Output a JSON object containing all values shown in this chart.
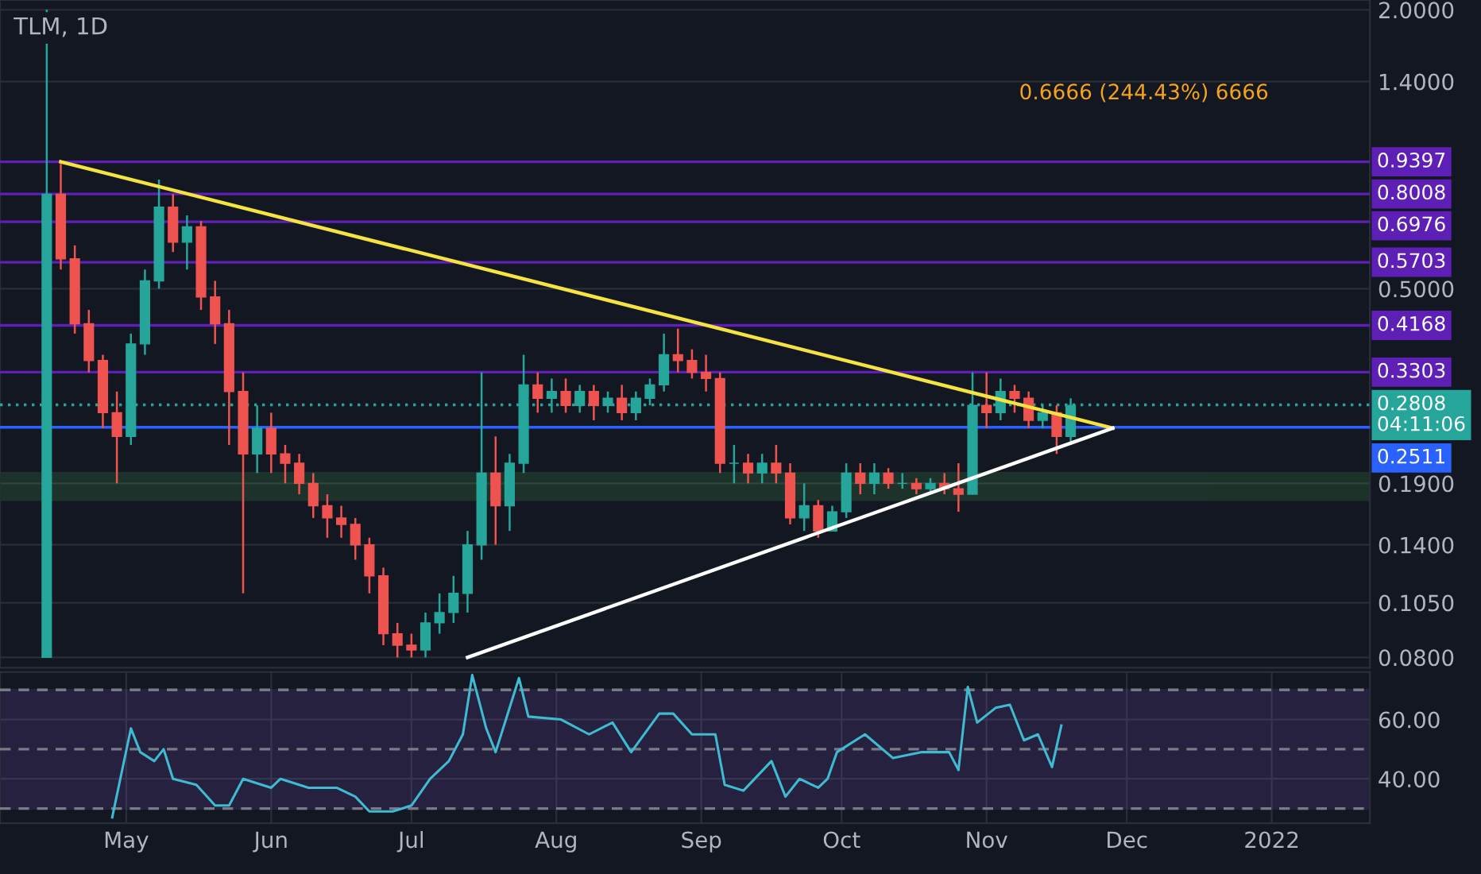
{
  "chart_data": [
    {
      "type": "candlestick",
      "title": "TLM, 1D",
      "x": [
        "2021-04-14",
        "2021-04-17",
        "2021-04-20",
        "2021-04-23",
        "2021-04-26",
        "2021-04-29",
        "2021-05-02",
        "2021-05-05",
        "2021-05-08",
        "2021-05-11",
        "2021-05-14",
        "2021-05-17",
        "2021-05-20",
        "2021-05-23",
        "2021-05-26",
        "2021-05-29",
        "2021-06-01",
        "2021-06-04",
        "2021-06-07",
        "2021-06-10",
        "2021-06-13",
        "2021-06-16",
        "2021-06-19",
        "2021-06-22",
        "2021-06-25",
        "2021-06-28",
        "2021-07-01",
        "2021-07-04",
        "2021-07-07",
        "2021-07-10",
        "2021-07-13",
        "2021-07-16",
        "2021-07-19",
        "2021-07-22",
        "2021-07-25",
        "2021-07-28",
        "2021-07-31",
        "2021-08-03",
        "2021-08-06",
        "2021-08-09",
        "2021-08-12",
        "2021-08-15",
        "2021-08-18",
        "2021-08-21",
        "2021-08-24",
        "2021-08-27",
        "2021-08-30",
        "2021-09-02",
        "2021-09-05",
        "2021-09-08",
        "2021-09-11",
        "2021-09-14",
        "2021-09-17",
        "2021-09-20",
        "2021-09-23",
        "2021-09-26",
        "2021-09-29",
        "2021-10-02",
        "2021-10-05",
        "2021-10-08",
        "2021-10-11",
        "2021-10-14",
        "2021-10-17",
        "2021-10-20",
        "2021-10-23",
        "2021-10-26",
        "2021-10-29",
        "2021-11-01",
        "2021-11-04",
        "2021-11-07",
        "2021-11-10",
        "2021-11-13",
        "2021-11-16",
        "2021-11-19"
      ],
      "ohlc": [
        [
          0.08,
          2.0,
          0.08,
          0.8
        ],
        [
          0.8,
          0.93,
          0.55,
          0.58
        ],
        [
          0.58,
          0.62,
          0.4,
          0.42
        ],
        [
          0.42,
          0.45,
          0.33,
          0.35
        ],
        [
          0.35,
          0.36,
          0.25,
          0.27
        ],
        [
          0.27,
          0.3,
          0.19,
          0.24
        ],
        [
          0.24,
          0.4,
          0.23,
          0.38
        ],
        [
          0.38,
          0.55,
          0.36,
          0.52
        ],
        [
          0.52,
          0.86,
          0.5,
          0.75
        ],
        [
          0.75,
          0.8,
          0.6,
          0.63
        ],
        [
          0.63,
          0.72,
          0.55,
          0.68
        ],
        [
          0.68,
          0.7,
          0.45,
          0.48
        ],
        [
          0.48,
          0.52,
          0.38,
          0.42
        ],
        [
          0.42,
          0.45,
          0.23,
          0.3
        ],
        [
          0.3,
          0.33,
          0.11,
          0.22
        ],
        [
          0.22,
          0.28,
          0.2,
          0.25
        ],
        [
          0.25,
          0.27,
          0.2,
          0.22
        ],
        [
          0.22,
          0.23,
          0.19,
          0.21
        ],
        [
          0.21,
          0.22,
          0.18,
          0.19
        ],
        [
          0.19,
          0.2,
          0.16,
          0.17
        ],
        [
          0.17,
          0.18,
          0.145,
          0.16
        ],
        [
          0.16,
          0.17,
          0.145,
          0.155
        ],
        [
          0.155,
          0.16,
          0.13,
          0.14
        ],
        [
          0.14,
          0.145,
          0.11,
          0.12
        ],
        [
          0.12,
          0.125,
          0.085,
          0.09
        ],
        [
          0.09,
          0.095,
          0.08,
          0.085
        ],
        [
          0.085,
          0.09,
          0.08,
          0.083
        ],
        [
          0.083,
          0.1,
          0.08,
          0.095
        ],
        [
          0.095,
          0.11,
          0.09,
          0.1
        ],
        [
          0.1,
          0.12,
          0.095,
          0.11
        ],
        [
          0.11,
          0.15,
          0.1,
          0.14
        ],
        [
          0.14,
          0.33,
          0.13,
          0.2
        ],
        [
          0.2,
          0.24,
          0.14,
          0.17
        ],
        [
          0.17,
          0.22,
          0.15,
          0.21
        ],
        [
          0.21,
          0.36,
          0.2,
          0.31
        ],
        [
          0.31,
          0.33,
          0.27,
          0.29
        ],
        [
          0.29,
          0.32,
          0.27,
          0.3
        ],
        [
          0.3,
          0.32,
          0.27,
          0.28
        ],
        [
          0.28,
          0.31,
          0.27,
          0.3
        ],
        [
          0.3,
          0.31,
          0.26,
          0.28
        ],
        [
          0.28,
          0.3,
          0.27,
          0.29
        ],
        [
          0.29,
          0.31,
          0.26,
          0.27
        ],
        [
          0.27,
          0.3,
          0.26,
          0.29
        ],
        [
          0.29,
          0.32,
          0.28,
          0.31
        ],
        [
          0.31,
          0.4,
          0.3,
          0.36
        ],
        [
          0.36,
          0.41,
          0.33,
          0.35
        ],
        [
          0.35,
          0.37,
          0.32,
          0.33
        ],
        [
          0.33,
          0.36,
          0.3,
          0.32
        ],
        [
          0.32,
          0.33,
          0.2,
          0.21
        ],
        [
          0.21,
          0.23,
          0.19,
          0.21
        ],
        [
          0.21,
          0.22,
          0.19,
          0.2
        ],
        [
          0.2,
          0.22,
          0.19,
          0.21
        ],
        [
          0.21,
          0.23,
          0.19,
          0.2
        ],
        [
          0.2,
          0.21,
          0.155,
          0.16
        ],
        [
          0.16,
          0.19,
          0.15,
          0.17
        ],
        [
          0.17,
          0.175,
          0.145,
          0.15
        ],
        [
          0.15,
          0.17,
          0.15,
          0.165
        ],
        [
          0.165,
          0.21,
          0.16,
          0.2
        ],
        [
          0.2,
          0.21,
          0.18,
          0.19
        ],
        [
          0.19,
          0.21,
          0.18,
          0.2
        ],
        [
          0.2,
          0.205,
          0.185,
          0.19
        ],
        [
          0.19,
          0.2,
          0.185,
          0.19
        ],
        [
          0.19,
          0.195,
          0.18,
          0.185
        ],
        [
          0.185,
          0.195,
          0.18,
          0.19
        ],
        [
          0.19,
          0.2,
          0.18,
          0.185
        ],
        [
          0.185,
          0.21,
          0.165,
          0.18
        ],
        [
          0.18,
          0.33,
          0.18,
          0.28
        ],
        [
          0.28,
          0.33,
          0.25,
          0.27
        ],
        [
          0.27,
          0.32,
          0.26,
          0.3
        ],
        [
          0.3,
          0.31,
          0.27,
          0.29
        ],
        [
          0.29,
          0.3,
          0.25,
          0.26
        ],
        [
          0.26,
          0.28,
          0.25,
          0.27
        ],
        [
          0.27,
          0.28,
          0.22,
          0.24
        ],
        [
          0.24,
          0.29,
          0.23,
          0.28
        ]
      ],
      "series": [
        {
          "type": "line",
          "color": "#f5e342",
          "x": [
            "2021-04-17",
            "2021-11-28"
          ],
          "values": [
            0.94,
            0.25
          ]
        },
        {
          "type": "line",
          "color": "#ffffff",
          "x": [
            "2021-07-13",
            "2021-11-28"
          ],
          "values": [
            0.08,
            0.25
          ]
        }
      ],
      "ref_lines": [
        {
          "axis": "y",
          "value": 0.9397,
          "label": "0.9397",
          "color": "#5d1fb5"
        },
        {
          "axis": "y",
          "value": 0.8008,
          "label": "0.8008",
          "color": "#5d1fb5"
        },
        {
          "axis": "y",
          "value": 0.6976,
          "label": "0.6976",
          "color": "#5d1fb5"
        },
        {
          "axis": "y",
          "value": 0.5703,
          "label": "0.5703",
          "color": "#5d1fb5"
        },
        {
          "axis": "y",
          "value": 0.4168,
          "label": "0.4168",
          "color": "#5d1fb5"
        },
        {
          "axis": "y",
          "value": 0.3303,
          "label": "0.3303",
          "color": "#5d1fb5"
        },
        {
          "axis": "y",
          "value": 0.2808,
          "label": "0.2808\n04:11:06",
          "color": "#26a69a",
          "line_style": "dotted"
        },
        {
          "axis": "y",
          "value": 0.2511,
          "label": "0.2511",
          "color": "#2962ff"
        }
      ],
      "bands": [
        {
          "axis": "y",
          "from": 0.175,
          "to": 0.2,
          "color": "#4caf50"
        }
      ],
      "annotations": [
        "0.6666 (244.43%) 6666"
      ],
      "log": true,
      "grid": true,
      "tick_labels": "y",
      "xlim": [
        "2021-04-04",
        "2022-01-22"
      ],
      "ylim": [
        0.076,
        2.1
      ],
      "yticks": [
        {
          "value": 0.08,
          "label": "0.0800"
        },
        {
          "value": 0.105,
          "label": "0.1050"
        },
        {
          "value": 0.14,
          "label": "0.1400"
        },
        {
          "value": 0.19,
          "label": "0.1900"
        },
        {
          "value": 0.5,
          "label": "0.5000"
        },
        {
          "value": 1.4,
          "label": "1.4000"
        },
        {
          "value": 2.0,
          "label": "2.0000"
        }
      ]
    },
    {
      "type": "line",
      "series": [
        {
          "color": "#3ebbd0",
          "x": [
            "2021-04-28",
            "2021-05-02",
            "2021-05-04",
            "2021-05-07",
            "2021-05-09",
            "2021-05-11",
            "2021-05-16",
            "2021-05-20",
            "2021-05-23",
            "2021-05-26",
            "2021-06-01",
            "2021-06-03",
            "2021-06-09",
            "2021-06-15",
            "2021-06-19",
            "2021-06-22",
            "2021-06-27",
            "2021-07-01",
            "2021-07-05",
            "2021-07-09",
            "2021-07-12",
            "2021-07-14",
            "2021-07-17",
            "2021-07-19",
            "2021-07-22",
            "2021-07-24",
            "2021-07-26",
            "2021-08-02",
            "2021-08-08",
            "2021-08-13",
            "2021-08-17",
            "2021-08-23",
            "2021-08-26",
            "2021-08-30",
            "2021-09-04",
            "2021-09-06",
            "2021-09-10",
            "2021-09-16",
            "2021-09-19",
            "2021-09-22",
            "2021-09-26",
            "2021-09-28",
            "2021-09-30",
            "2021-10-06",
            "2021-10-12",
            "2021-10-18",
            "2021-10-24",
            "2021-10-26",
            "2021-10-28",
            "2021-10-30",
            "2021-11-03",
            "2021-11-06",
            "2021-11-09",
            "2021-11-12",
            "2021-11-15",
            "2021-11-17"
          ],
          "values": [
            27,
            57,
            49,
            46,
            50,
            40,
            38,
            31,
            31,
            40,
            37,
            40,
            37,
            37,
            34,
            29,
            29,
            31,
            40,
            46,
            55,
            75,
            57,
            49,
            64,
            74,
            61,
            60,
            55,
            59,
            49,
            62,
            62,
            55,
            55,
            38,
            36,
            46,
            34,
            40,
            37,
            40,
            49,
            55,
            47,
            49,
            49,
            43,
            71,
            59,
            64,
            65,
            53,
            55,
            44,
            58
          ]
        }
      ],
      "ref_lines": [
        {
          "axis": "y",
          "value": 70,
          "color": "#787b86",
          "line_style": "dashed"
        },
        {
          "axis": "y",
          "value": 50,
          "color": "#787b86",
          "line_style": "dashed"
        },
        {
          "axis": "y",
          "value": 30,
          "color": "#787b86",
          "line_style": "dashed"
        }
      ],
      "bands": [
        {
          "axis": "y",
          "from": 30,
          "to": 70,
          "color": "#7e57c2"
        }
      ],
      "grid": true,
      "xlim": [
        "2021-04-04",
        "2022-01-22"
      ],
      "ylim": [
        25,
        76
      ],
      "xticks": [
        {
          "value": "2021-05-01",
          "label": "May"
        },
        {
          "value": "2021-06-01",
          "label": "Jun"
        },
        {
          "value": "2021-07-01",
          "label": "Jul"
        },
        {
          "value": "2021-08-01",
          "label": "Aug"
        },
        {
          "value": "2021-09-01",
          "label": "Sep"
        },
        {
          "value": "2021-10-01",
          "label": "Oct"
        },
        {
          "value": "2021-11-01",
          "label": "Nov"
        },
        {
          "value": "2021-12-01",
          "label": "Dec"
        },
        {
          "value": "2022-01-01",
          "label": "2022"
        }
      ],
      "yticks": [
        {
          "value": 40,
          "label": "40.00"
        },
        {
          "value": 60,
          "label": "60.00"
        }
      ]
    }
  ]
}
